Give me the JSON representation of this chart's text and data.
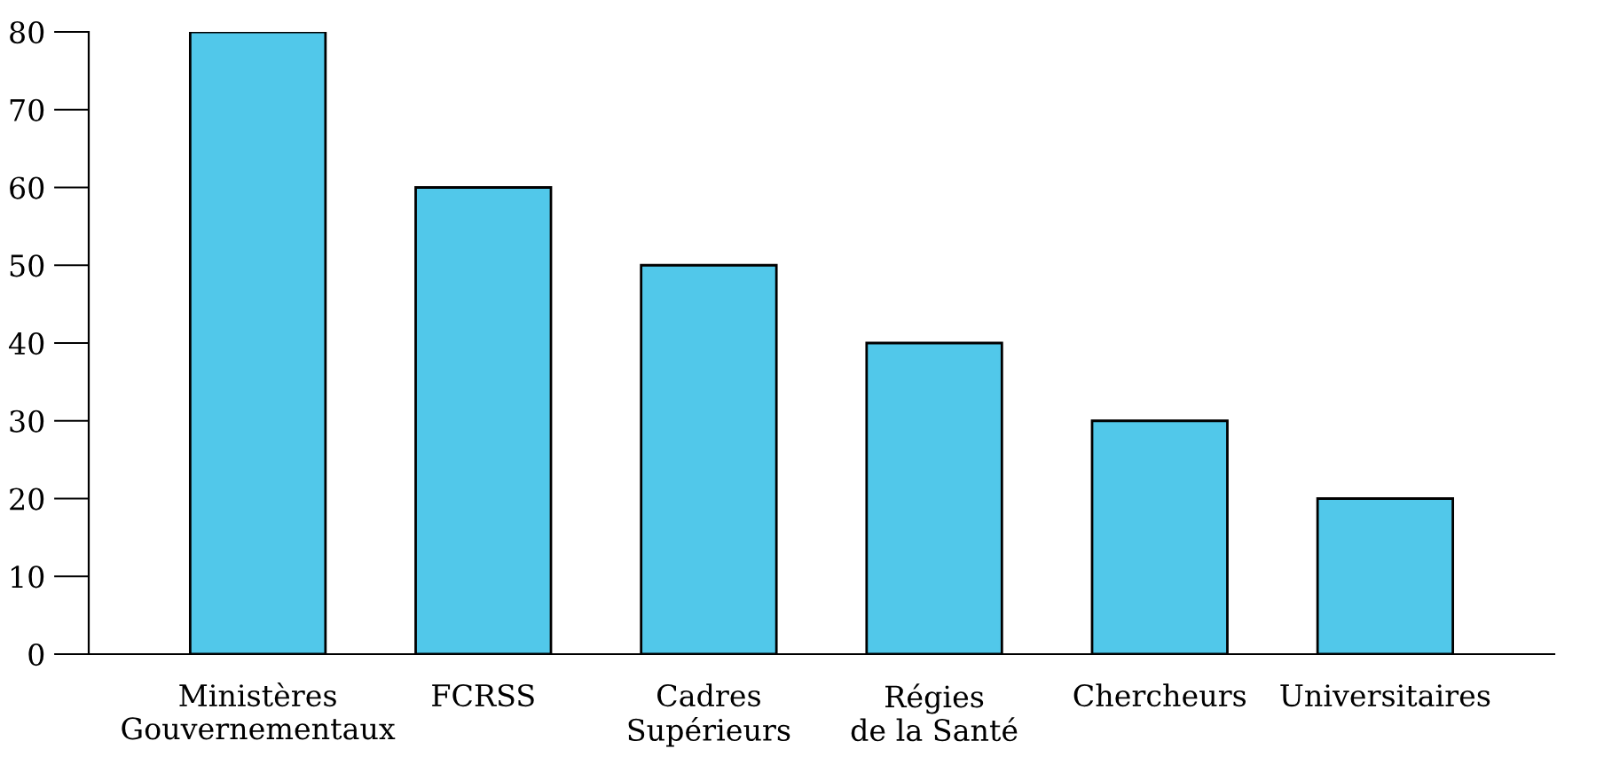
{
  "chart_data": {
    "type": "bar",
    "categories": [
      "Ministères\nGouvernementaux",
      "FCRSS",
      "Cadres\nSupérieurs",
      "Régies\nde la Santé",
      "Chercheurs",
      "Universitaires"
    ],
    "values": [
      80,
      60,
      50,
      40,
      30,
      20
    ],
    "color": "#51c8ea",
    "ylim": [
      0,
      80
    ],
    "yticks": [
      0,
      10,
      20,
      30,
      40,
      50,
      60,
      70,
      80
    ],
    "grid": false,
    "legend": false
  }
}
